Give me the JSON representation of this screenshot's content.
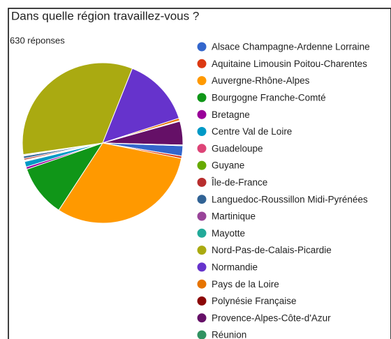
{
  "chart_data": {
    "type": "pie",
    "title": "Dans quelle région travaillez-vous ?",
    "subtitle": "630 réponses",
    "categories": [
      "Alsace Champagne-Ardenne Lorraine",
      "Aquitaine Limousin Poitou-Charentes",
      "Auvergne-Rhône-Alpes",
      "Bourgogne Franche-Comté",
      "Bretagne",
      "Centre Val de Loire",
      "Guadeloupe",
      "Guyane",
      "Île-de-France",
      "Languedoc-Roussillon Midi-Pyrénées",
      "Martinique",
      "Mayotte",
      "Nord-Pas-de-Calais-Picardie",
      "Normandie",
      "Pays de la Loire",
      "Polynésie Française",
      "Provence-Alpes-Côte-d'Azur",
      "Réunion"
    ],
    "values": [
      13,
      3,
      196,
      66,
      3,
      7,
      1,
      1,
      2,
      3,
      1,
      1,
      210,
      88,
      3,
      1,
      30,
      1
    ],
    "colors": [
      "#3366cc",
      "#dc3912",
      "#ff9900",
      "#109618",
      "#990099",
      "#0099c6",
      "#dd4477",
      "#66aa00",
      "#b82e2e",
      "#316395",
      "#994499",
      "#22aa99",
      "#aaaa11",
      "#6633cc",
      "#e67300",
      "#8b0707",
      "#651067",
      "#329262"
    ]
  }
}
